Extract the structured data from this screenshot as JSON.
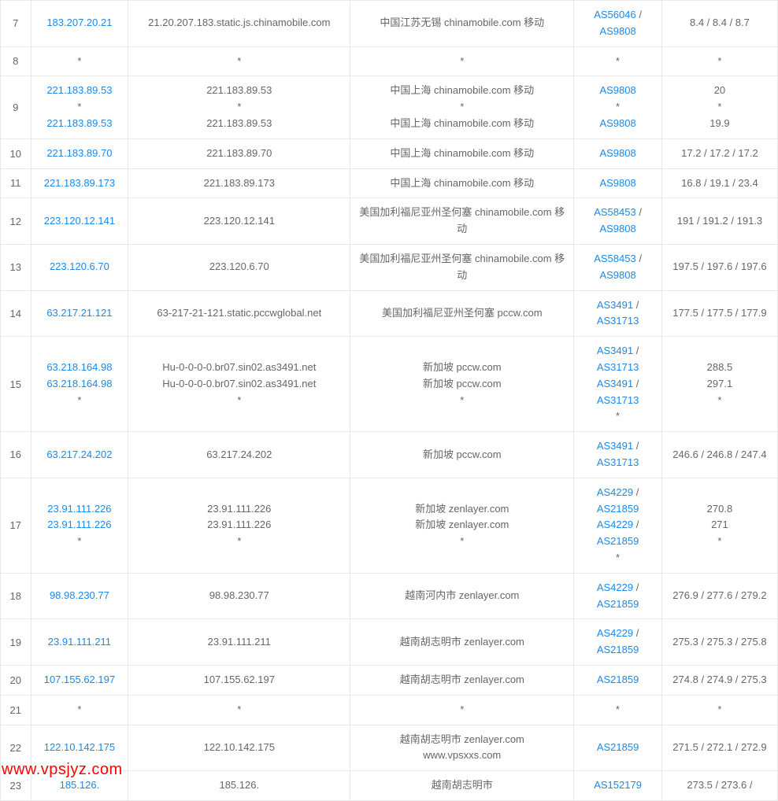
{
  "colors": {
    "link": "#1e88e5",
    "text": "#666666",
    "border": "#e8e8e8",
    "watermark": "#ff0000",
    "background": "#ffffff"
  },
  "watermark": "www.vpsjyz.com",
  "rows": [
    {
      "hop": "7",
      "ip": [
        {
          "text": "183.207.20.21",
          "link": true
        }
      ],
      "host": [
        {
          "text": "21.20.207.183.static.js.chinamobile.com",
          "link": false
        }
      ],
      "location": [
        {
          "text": "中国江苏无锡 chinamobile.com 移动",
          "link": false
        }
      ],
      "as": [
        {
          "parts": [
            {
              "text": "AS56046",
              "link": true
            },
            {
              "text": " / ",
              "link": false
            },
            {
              "text": "AS9808",
              "link": true
            }
          ]
        }
      ],
      "time": [
        {
          "text": "8.4 / 8.4 / 8.7",
          "link": false
        }
      ]
    },
    {
      "hop": "8",
      "ip": [
        {
          "text": "*",
          "link": false
        }
      ],
      "host": [
        {
          "text": "*",
          "link": false
        }
      ],
      "location": [
        {
          "text": "*",
          "link": false
        }
      ],
      "as": [
        {
          "text": "*",
          "link": false
        }
      ],
      "time": [
        {
          "text": "*",
          "link": false
        }
      ]
    },
    {
      "hop": "9",
      "ip": [
        {
          "text": "221.183.89.53",
          "link": true
        },
        {
          "text": "*",
          "link": false
        },
        {
          "text": "221.183.89.53",
          "link": true
        }
      ],
      "host": [
        {
          "text": "221.183.89.53",
          "link": false
        },
        {
          "text": "*",
          "link": false
        },
        {
          "text": "221.183.89.53",
          "link": false
        }
      ],
      "location": [
        {
          "text": "中国上海 chinamobile.com 移动",
          "link": false
        },
        {
          "text": "*",
          "link": false
        },
        {
          "text": "中国上海 chinamobile.com 移动",
          "link": false
        }
      ],
      "as": [
        {
          "text": "AS9808",
          "link": true
        },
        {
          "text": "*",
          "link": false
        },
        {
          "text": "AS9808",
          "link": true
        }
      ],
      "time": [
        {
          "text": "20",
          "link": false
        },
        {
          "text": "*",
          "link": false
        },
        {
          "text": "19.9",
          "link": false
        }
      ]
    },
    {
      "hop": "10",
      "ip": [
        {
          "text": "221.183.89.70",
          "link": true
        }
      ],
      "host": [
        {
          "text": "221.183.89.70",
          "link": false
        }
      ],
      "location": [
        {
          "text": "中国上海 chinamobile.com 移动",
          "link": false
        }
      ],
      "as": [
        {
          "text": "AS9808",
          "link": true
        }
      ],
      "time": [
        {
          "text": "17.2 / 17.2 / 17.2",
          "link": false
        }
      ]
    },
    {
      "hop": "11",
      "ip": [
        {
          "text": "221.183.89.173",
          "link": true
        }
      ],
      "host": [
        {
          "text": "221.183.89.173",
          "link": false
        }
      ],
      "location": [
        {
          "text": "中国上海 chinamobile.com 移动",
          "link": false
        }
      ],
      "as": [
        {
          "text": "AS9808",
          "link": true
        }
      ],
      "time": [
        {
          "text": "16.8 / 19.1 / 23.4",
          "link": false
        }
      ]
    },
    {
      "hop": "12",
      "ip": [
        {
          "text": "223.120.12.141",
          "link": true
        }
      ],
      "host": [
        {
          "text": "223.120.12.141",
          "link": false
        }
      ],
      "location": [
        {
          "text": "美国加利福尼亚州圣何塞 chinamobile.com 移动",
          "link": false
        }
      ],
      "as": [
        {
          "parts": [
            {
              "text": "AS58453",
              "link": true
            },
            {
              "text": " / ",
              "link": false
            },
            {
              "text": "AS9808",
              "link": true
            }
          ]
        }
      ],
      "time": [
        {
          "text": "191 / 191.2 / 191.3",
          "link": false
        }
      ]
    },
    {
      "hop": "13",
      "ip": [
        {
          "text": "223.120.6.70",
          "link": true
        }
      ],
      "host": [
        {
          "text": "223.120.6.70",
          "link": false
        }
      ],
      "location": [
        {
          "text": "美国加利福尼亚州圣何塞 chinamobile.com 移动",
          "link": false
        }
      ],
      "as": [
        {
          "parts": [
            {
              "text": "AS58453",
              "link": true
            },
            {
              "text": " / ",
              "link": false
            },
            {
              "text": "AS9808",
              "link": true
            }
          ]
        }
      ],
      "time": [
        {
          "text": "197.5 / 197.6 / 197.6",
          "link": false
        }
      ]
    },
    {
      "hop": "14",
      "ip": [
        {
          "text": "63.217.21.121",
          "link": true
        }
      ],
      "host": [
        {
          "text": "63-217-21-121.static.pccwglobal.net",
          "link": false
        }
      ],
      "location": [
        {
          "text": "美国加利福尼亚州圣何塞 pccw.com",
          "link": false
        }
      ],
      "as": [
        {
          "parts": [
            {
              "text": "AS3491",
              "link": true
            },
            {
              "text": " / ",
              "link": false
            },
            {
              "text": "AS31713",
              "link": true
            }
          ]
        }
      ],
      "time": [
        {
          "text": "177.5 / 177.5 / 177.9",
          "link": false
        }
      ]
    },
    {
      "hop": "15",
      "ip": [
        {
          "text": "63.218.164.98",
          "link": true
        },
        {
          "text": "63.218.164.98",
          "link": true
        },
        {
          "text": "*",
          "link": false
        }
      ],
      "host": [
        {
          "text": "Hu-0-0-0-0.br07.sin02.as3491.net",
          "link": false
        },
        {
          "text": "Hu-0-0-0-0.br07.sin02.as3491.net",
          "link": false
        },
        {
          "text": "*",
          "link": false
        }
      ],
      "location": [
        {
          "text": "新加坡 pccw.com",
          "link": false
        },
        {
          "text": "新加坡 pccw.com",
          "link": false
        },
        {
          "text": "*",
          "link": false
        }
      ],
      "as": [
        {
          "parts": [
            {
              "text": "AS3491",
              "link": true
            },
            {
              "text": " / ",
              "link": false
            },
            {
              "text": "AS31713",
              "link": true
            }
          ]
        },
        {
          "parts": [
            {
              "text": "AS3491",
              "link": true
            },
            {
              "text": " / ",
              "link": false
            },
            {
              "text": "AS31713",
              "link": true
            }
          ]
        },
        {
          "text": "*",
          "link": false
        }
      ],
      "time": [
        {
          "text": "288.5",
          "link": false
        },
        {
          "text": "297.1",
          "link": false
        },
        {
          "text": "*",
          "link": false
        }
      ]
    },
    {
      "hop": "16",
      "ip": [
        {
          "text": "63.217.24.202",
          "link": true
        }
      ],
      "host": [
        {
          "text": "63.217.24.202",
          "link": false
        }
      ],
      "location": [
        {
          "text": "新加坡 pccw.com",
          "link": false
        }
      ],
      "as": [
        {
          "parts": [
            {
              "text": "AS3491",
              "link": true
            },
            {
              "text": " / ",
              "link": false
            },
            {
              "text": "AS31713",
              "link": true
            }
          ]
        }
      ],
      "time": [
        {
          "text": "246.6 / 246.8 / 247.4",
          "link": false
        }
      ]
    },
    {
      "hop": "17",
      "ip": [
        {
          "text": "23.91.111.226",
          "link": true
        },
        {
          "text": "23.91.111.226",
          "link": true
        },
        {
          "text": "*",
          "link": false
        }
      ],
      "host": [
        {
          "text": "23.91.111.226",
          "link": false
        },
        {
          "text": "23.91.111.226",
          "link": false
        },
        {
          "text": "*",
          "link": false
        }
      ],
      "location": [
        {
          "text": "新加坡 zenlayer.com",
          "link": false
        },
        {
          "text": "新加坡 zenlayer.com",
          "link": false
        },
        {
          "text": "*",
          "link": false
        }
      ],
      "as": [
        {
          "parts": [
            {
              "text": "AS4229",
              "link": true
            },
            {
              "text": " / ",
              "link": false
            },
            {
              "text": "AS21859",
              "link": true
            }
          ]
        },
        {
          "parts": [
            {
              "text": "AS4229",
              "link": true
            },
            {
              "text": " / ",
              "link": false
            },
            {
              "text": "AS21859",
              "link": true
            }
          ]
        },
        {
          "text": "*",
          "link": false
        }
      ],
      "time": [
        {
          "text": "270.8",
          "link": false
        },
        {
          "text": "271",
          "link": false
        },
        {
          "text": "*",
          "link": false
        }
      ]
    },
    {
      "hop": "18",
      "ip": [
        {
          "text": "98.98.230.77",
          "link": true
        }
      ],
      "host": [
        {
          "text": "98.98.230.77",
          "link": false
        }
      ],
      "location": [
        {
          "text": "越南河内市 zenlayer.com",
          "link": false
        }
      ],
      "as": [
        {
          "parts": [
            {
              "text": "AS4229",
              "link": true
            },
            {
              "text": " / ",
              "link": false
            },
            {
              "text": "AS21859",
              "link": true
            }
          ]
        }
      ],
      "time": [
        {
          "text": "276.9 / 277.6 / 279.2",
          "link": false
        }
      ]
    },
    {
      "hop": "19",
      "ip": [
        {
          "text": "23.91.111.211",
          "link": true
        }
      ],
      "host": [
        {
          "text": "23.91.111.211",
          "link": false
        }
      ],
      "location": [
        {
          "text": "越南胡志明市 zenlayer.com",
          "link": false
        }
      ],
      "as": [
        {
          "parts": [
            {
              "text": "AS4229",
              "link": true
            },
            {
              "text": " / ",
              "link": false
            },
            {
              "text": "AS21859",
              "link": true
            }
          ]
        }
      ],
      "time": [
        {
          "text": "275.3 / 275.3 / 275.8",
          "link": false
        }
      ]
    },
    {
      "hop": "20",
      "ip": [
        {
          "text": "107.155.62.197",
          "link": true
        }
      ],
      "host": [
        {
          "text": "107.155.62.197",
          "link": false
        }
      ],
      "location": [
        {
          "text": "越南胡志明市 zenlayer.com",
          "link": false
        }
      ],
      "as": [
        {
          "text": "AS21859",
          "link": true
        }
      ],
      "time": [
        {
          "text": "274.8 / 274.9 / 275.3",
          "link": false
        }
      ]
    },
    {
      "hop": "21",
      "ip": [
        {
          "text": "*",
          "link": false
        }
      ],
      "host": [
        {
          "text": "*",
          "link": false
        }
      ],
      "location": [
        {
          "text": "*",
          "link": false
        }
      ],
      "as": [
        {
          "text": "*",
          "link": false
        }
      ],
      "time": [
        {
          "text": "*",
          "link": false
        }
      ]
    },
    {
      "hop": "22",
      "ip": [
        {
          "text": "122.10.142.175",
          "link": true
        }
      ],
      "host": [
        {
          "text": "122.10.142.175",
          "link": false
        }
      ],
      "location": [
        {
          "text": "越南胡志明市 zenlayer.com",
          "link": false
        },
        {
          "text": "www.vpsxxs.com",
          "link": false
        }
      ],
      "as": [
        {
          "text": "AS21859",
          "link": true
        }
      ],
      "time": [
        {
          "text": "271.5 / 272.1 / 272.9",
          "link": false
        }
      ]
    },
    {
      "hop": "23",
      "ip": [
        {
          "text": "185.126.",
          "link": true
        }
      ],
      "host": [
        {
          "text": "185.126.",
          "link": false
        }
      ],
      "location": [
        {
          "text": "越南胡志明市",
          "link": false
        }
      ],
      "as": [
        {
          "text": "AS152179",
          "link": true
        }
      ],
      "time": [
        {
          "text": "273.5 / 273.6 /",
          "link": false
        }
      ]
    }
  ]
}
